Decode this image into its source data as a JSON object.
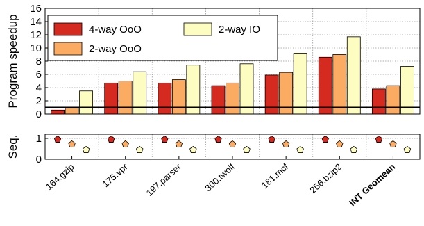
{
  "chart_data": [
    {
      "type": "bar",
      "ylabel": "Program speedup",
      "ylim": [
        0,
        16
      ],
      "yticks": [
        0,
        2,
        4,
        6,
        8,
        10,
        12,
        14,
        16
      ],
      "reference_line": 1,
      "grid": true,
      "legend_position": "top-left",
      "categories": [
        "164.gzip",
        "175.vpr",
        "197.parser",
        "300.twolf",
        "181.mcf",
        "256.bzip2",
        "INT Geomean"
      ],
      "series": [
        {
          "name": "4-way OoO",
          "color": "#d42a20",
          "values": [
            0.6,
            4.7,
            4.7,
            4.3,
            5.9,
            8.6,
            3.8
          ]
        },
        {
          "name": "2-way OoO",
          "color": "#fbab62",
          "values": [
            0.9,
            5.0,
            5.2,
            4.7,
            6.3,
            9.0,
            4.3
          ]
        },
        {
          "name": "2-way IO",
          "color": "#fdfdc2",
          "values": [
            3.5,
            6.4,
            7.4,
            7.6,
            9.2,
            11.7,
            7.2
          ]
        }
      ]
    },
    {
      "type": "scatter",
      "ylabel": "Seq.",
      "ylim": [
        0,
        1.2
      ],
      "yticks": [
        0,
        1
      ],
      "grid": true,
      "categories": [
        "164.gzip",
        "175.vpr",
        "197.parser",
        "300.twolf",
        "181.mcf",
        "256.bzip2",
        "INT Geomean"
      ],
      "series": [
        {
          "name": "4-way OoO",
          "color": "#d42a20",
          "values": [
            0.95,
            0.95,
            0.95,
            0.95,
            0.95,
            0.95,
            0.95
          ]
        },
        {
          "name": "2-way OoO",
          "color": "#fbab62",
          "values": [
            0.72,
            0.72,
            0.72,
            0.72,
            0.72,
            0.72,
            0.72
          ]
        },
        {
          "name": "2-way IO",
          "color": "#fdfdc2",
          "values": [
            0.45,
            0.45,
            0.45,
            0.45,
            0.45,
            0.45,
            0.45
          ]
        }
      ]
    }
  ]
}
